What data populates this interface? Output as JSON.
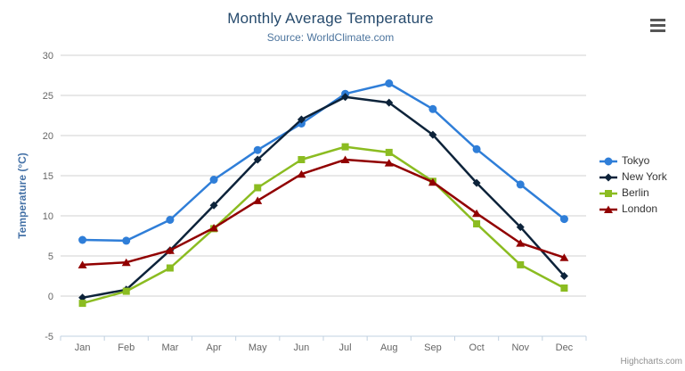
{
  "credits": "Highcharts.com",
  "chart_data": {
    "type": "line",
    "title": "Monthly Average Temperature",
    "subtitle": "Source: WorldClimate.com",
    "categories": [
      "Jan",
      "Feb",
      "Mar",
      "Apr",
      "May",
      "Jun",
      "Jul",
      "Aug",
      "Sep",
      "Oct",
      "Nov",
      "Dec"
    ],
    "xlabel": "",
    "ylabel": "Temperature (°C)",
    "ylim": [
      -5,
      30
    ],
    "ytick_step": 5,
    "grid": true,
    "legend_position": "right",
    "series": [
      {
        "name": "Tokyo",
        "color": "#2f7ed8",
        "marker": "circle",
        "values": [
          7.0,
          6.9,
          9.5,
          14.5,
          18.2,
          21.5,
          25.2,
          26.5,
          23.3,
          18.3,
          13.9,
          9.6
        ]
      },
      {
        "name": "New York",
        "color": "#0d233a",
        "marker": "diamond",
        "values": [
          -0.2,
          0.8,
          5.7,
          11.3,
          17.0,
          22.0,
          24.8,
          24.1,
          20.1,
          14.1,
          8.6,
          2.5
        ]
      },
      {
        "name": "Berlin",
        "color": "#8bbc21",
        "marker": "square",
        "values": [
          -0.9,
          0.6,
          3.5,
          8.4,
          13.5,
          17.0,
          18.6,
          17.9,
          14.3,
          9.0,
          3.9,
          1.0
        ]
      },
      {
        "name": "London",
        "color": "#910000",
        "marker": "triangle",
        "values": [
          3.9,
          4.2,
          5.7,
          8.5,
          11.9,
          15.2,
          17.0,
          16.6,
          14.2,
          10.3,
          6.6,
          4.8
        ]
      }
    ]
  },
  "theme": {
    "background": "#ffffff",
    "grid_color": "#d0d0d0",
    "axis_line_color": "#c0d0e0",
    "tick_label_color": "#666666",
    "title_color": "#274b6d",
    "subtitle_color": "#4d759e",
    "y_axis_title_color": "#4572a7",
    "legend_text_color": "#333333",
    "credits_color": "#909090",
    "menu_icon_color": "#565656"
  }
}
